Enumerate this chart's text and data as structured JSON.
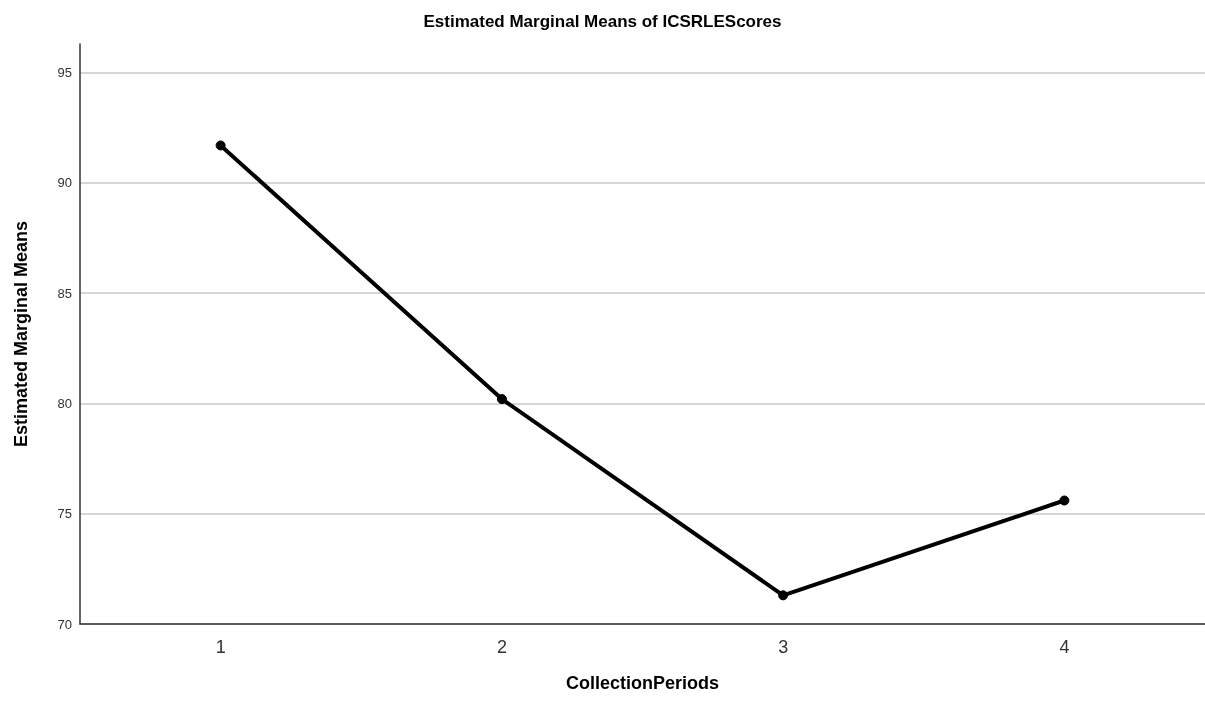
{
  "chart_data": {
    "type": "line",
    "title": "Estimated Marginal Means of ICSRLEScores",
    "xlabel": "CollectionPeriods",
    "ylabel": "Estimated Marginal Means",
    "categories": [
      "1",
      "2",
      "3",
      "4"
    ],
    "series": [
      {
        "color": "#000000",
        "values": [
          91.7,
          80.2,
          71.3,
          75.6
        ]
      }
    ],
    "ylim": [
      70,
      96.3
    ],
    "yticks": [
      70,
      75,
      80,
      85,
      90,
      95
    ],
    "grid": "y",
    "marker": "circle",
    "line_style": "solid"
  }
}
